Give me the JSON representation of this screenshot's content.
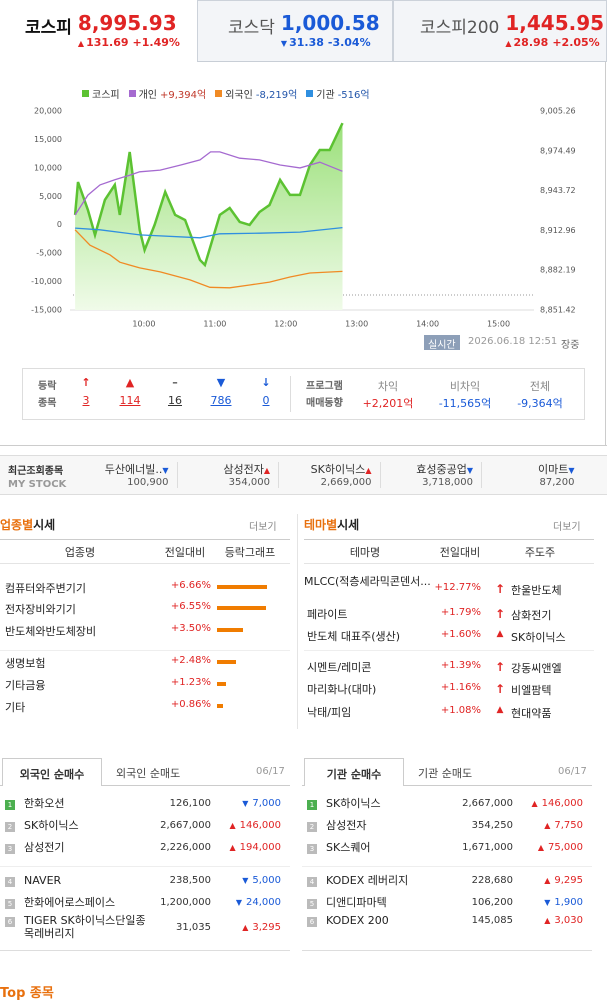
{
  "indices": [
    {
      "name": "코스피",
      "value": "8,995.93",
      "arrow": "▲",
      "change": "131.69",
      "rate": "+1.49%"
    },
    {
      "name": "코스닥",
      "value": "1,000.58",
      "arrow": "▼",
      "change": "31.38",
      "rate": "-3.04%"
    },
    {
      "name": "코스피200",
      "value": "1,445.95",
      "arrow": "▲",
      "change": "28.98",
      "rate": "+2.05%"
    }
  ],
  "chart_data": {
    "type": "line",
    "series": [
      {
        "name": "코스피",
        "color": "#5cc232",
        "axis": "y2",
        "fill": true,
        "x": [
          9.03,
          9.07,
          9.21,
          9.31,
          9.45,
          9.59,
          9.66,
          9.8,
          9.94,
          10.01,
          10.15,
          10.3,
          10.44,
          10.58,
          10.79,
          10.86,
          11.07,
          11.21,
          11.35,
          11.49,
          11.63,
          11.77,
          11.92,
          12.06,
          12.2,
          12.34,
          12.48,
          12.62,
          12.8
        ],
        "values": [
          8924.9,
          8950.4,
          8928.8,
          8909.4,
          8936.5,
          8948.1,
          8924.9,
          8973.6,
          8913.3,
          8897.8,
          8917.2,
          8942.7,
          8924.9,
          8921.0,
          8890.1,
          8886.2,
          8924.9,
          8930.3,
          8919.5,
          8917.2,
          8927.2,
          8932.6,
          8952.0,
          8940.4,
          8940.4,
          8963.5,
          8975.1,
          8975.1,
          8995.9
        ]
      },
      {
        "name": "개인",
        "legend_value": "+9,394억",
        "color": "#a56ad0",
        "x": [
          9.03,
          9.21,
          9.38,
          9.59,
          9.8,
          9.94,
          10.23,
          10.52,
          10.79,
          10.94,
          11.07,
          11.35,
          11.63,
          11.92,
          12.2,
          12.48,
          12.8
        ],
        "values": [
          1700,
          5200,
          7000,
          7900,
          8700,
          9300,
          9600,
          10500,
          11400,
          12800,
          12800,
          11700,
          11400,
          10500,
          10000,
          11000,
          9400
        ]
      },
      {
        "name": "외국인",
        "legend_value": "-8,219억",
        "color": "#f08a24",
        "x": [
          9.03,
          9.24,
          9.52,
          9.66,
          9.94,
          10.23,
          10.65,
          10.93,
          11.21,
          11.49,
          11.77,
          12.06,
          12.34,
          12.8
        ],
        "values": [
          -900,
          -3600,
          -5300,
          -6600,
          -7600,
          -8300,
          -9700,
          -11000,
          -11100,
          -10600,
          -10100,
          -9200,
          -8500,
          -8219
        ]
      },
      {
        "name": "기관",
        "legend_value": "-516억",
        "color": "#2f8fe0",
        "x": [
          9.03,
          9.38,
          9.94,
          10.79,
          11.07,
          11.63,
          12.2,
          12.8
        ],
        "values": [
          -600,
          -900,
          -1800,
          -2300,
          -1600,
          -1500,
          -1300,
          -516
        ]
      }
    ],
    "xlim": [
      9,
      15.5
    ],
    "xticks": [
      {
        "value": 10,
        "label": "10:00"
      },
      {
        "value": 11,
        "label": "11:00"
      },
      {
        "value": 12,
        "label": "12:00"
      },
      {
        "value": 13,
        "label": "13:00"
      },
      {
        "value": 14,
        "label": "14:00"
      },
      {
        "value": 15,
        "label": "15:00"
      }
    ],
    "ylim": [
      -15000,
      20000
    ],
    "yticks": [
      {
        "value": 20000,
        "label": "20,000"
      },
      {
        "value": 15000,
        "label": "15,000"
      },
      {
        "value": 10000,
        "label": "10,000"
      },
      {
        "value": 5000,
        "label": "5,000"
      },
      0,
      {
        "value": -5000,
        "label": "-5,000"
      },
      {
        "value": -10000,
        "label": "-10,000"
      },
      {
        "value": -15000,
        "label": "-15,000"
      }
    ],
    "y2lim": [
      8851.42,
      9005.26
    ],
    "y2ticks": [
      {
        "value": 9005.26,
        "label": "9,005.26"
      },
      {
        "value": 8974.49,
        "label": "8,974.49"
      },
      {
        "value": 8943.72,
        "label": "8,943.72"
      },
      {
        "value": 8912.96,
        "label": "8,912.96"
      },
      {
        "value": 8882.19,
        "label": "8,882.19"
      },
      {
        "value": 8851.42,
        "label": "8,851.42"
      }
    ]
  },
  "chart_footer": {
    "button": "실시간",
    "timestamp": "2026.06.18 12:51",
    "status": "장중"
  },
  "breadth": {
    "label": [
      "등락",
      "종목"
    ],
    "items": [
      {
        "arrow": "↑",
        "count": 3
      },
      {
        "arrow": "▲",
        "count": 114
      },
      {
        "arrow": "–",
        "count": 16
      },
      {
        "arrow": "▼",
        "count": 786
      },
      {
        "arrow": "↓",
        "count": 0
      }
    ]
  },
  "program": {
    "label": [
      "프로그램",
      "매매동향"
    ],
    "items": [
      {
        "name": "차익",
        "value": "+2,201억"
      },
      {
        "name": "비차익",
        "value": "-11,565억"
      },
      {
        "name": "전체",
        "value": "-9,364억"
      }
    ]
  },
  "my_stock": {
    "label": "최근조회종목",
    "sublabel": "MY STOCK",
    "items": [
      {
        "name": "두산에너빌..",
        "arrow": "▼",
        "price": "100,900"
      },
      {
        "name": "삼성전자",
        "arrow": "▲",
        "price": "354,000"
      },
      {
        "name": "SK하이닉스",
        "arrow": "▲",
        "price": "2,669,000"
      },
      {
        "name": "효성중공업",
        "arrow": "▼",
        "price": "3,718,000"
      },
      {
        "name": "이마트",
        "arrow": "▼",
        "price": "87,200"
      }
    ]
  },
  "sectors": {
    "title_highlight": "업종별",
    "title": "시세",
    "more": "더보기",
    "headers": [
      "업종명",
      "전일대비",
      "등락그래프"
    ],
    "rows": [
      {
        "name": "컴퓨터와주변기기",
        "change": 6.66,
        "change_label": "+6.66%"
      },
      {
        "name": "전자장비와기기",
        "change": 6.55,
        "change_label": "+6.55%"
      },
      {
        "name": "반도체와반도체장비",
        "change": 3.5,
        "change_label": "+3.50%"
      },
      {
        "name": "생명보험",
        "change": 2.48,
        "change_label": "+2.48%"
      },
      {
        "name": "기타금융",
        "change": 1.23,
        "change_label": "+1.23%"
      },
      {
        "name": "기타",
        "change": 0.86,
        "change_label": "+0.86%"
      }
    ]
  },
  "themes": {
    "title_highlight": "테마별",
    "title": "시세",
    "more": "더보기",
    "headers": [
      "테마명",
      "전일대비",
      "주도주"
    ],
    "rows": [
      {
        "name": "MLCC(적층세라믹콘덴서...",
        "change": "+12.77%",
        "arrow": "↑",
        "leader": "한울반도체"
      },
      {
        "name": "페라이트",
        "change": "+1.79%",
        "arrow": "↑",
        "leader": "삼화전기"
      },
      {
        "name": "반도체 대표주(생산)",
        "change": "+1.60%",
        "arrow": "▲",
        "leader": "SK하이닉스"
      },
      {
        "name": "시멘트/레미콘",
        "change": "+1.39%",
        "arrow": "↑",
        "leader": "강동씨앤엘"
      },
      {
        "name": "마리화나(대마)",
        "change": "+1.16%",
        "arrow": "↑",
        "leader": "비엘팜텍"
      },
      {
        "name": "낙태/피임",
        "change": "+1.08%",
        "arrow": "▲",
        "leader": "현대약품"
      }
    ]
  },
  "foreign": {
    "tabs": [
      "외국인 순매수",
      "외국인 순매도"
    ],
    "date": "06/17",
    "rows": [
      {
        "rank": 1,
        "name": "한화오션",
        "price": "126,100",
        "arrow": "▼",
        "change": "7,000"
      },
      {
        "rank": 2,
        "name": "SK하이닉스",
        "price": "2,667,000",
        "arrow": "▲",
        "change": "146,000"
      },
      {
        "rank": 3,
        "name": "삼성전기",
        "price": "2,226,000",
        "arrow": "▲",
        "change": "194,000"
      },
      {
        "rank": 4,
        "name": "NAVER",
        "price": "238,500",
        "arrow": "▼",
        "change": "5,000"
      },
      {
        "rank": 5,
        "name": "한화에어로스페이스",
        "price": "1,200,000",
        "arrow": "▼",
        "change": "24,000"
      },
      {
        "rank": 6,
        "name": "TIGER SK하이닉스단일종목레버리지",
        "price": "31,035",
        "arrow": "▲",
        "change": "3,295"
      }
    ]
  },
  "institution": {
    "tabs": [
      "기관 순매수",
      "기관 순매도"
    ],
    "date": "06/17",
    "rows": [
      {
        "rank": 1,
        "name": "SK하이닉스",
        "price": "2,667,000",
        "arrow": "▲",
        "change": "146,000"
      },
      {
        "rank": 2,
        "name": "삼성전자",
        "price": "354,250",
        "arrow": "▲",
        "change": "7,750"
      },
      {
        "rank": 3,
        "name": "SK스퀘어",
        "price": "1,671,000",
        "arrow": "▲",
        "change": "75,000"
      },
      {
        "rank": 4,
        "name": "KODEX 레버리지",
        "price": "228,680",
        "arrow": "▲",
        "change": "9,295"
      },
      {
        "rank": 5,
        "name": "디앤디파마텍",
        "price": "106,200",
        "arrow": "▼",
        "change": "1,900"
      },
      {
        "rank": 6,
        "name": "KODEX 200",
        "price": "145,085",
        "arrow": "▲",
        "change": "3,030"
      }
    ]
  },
  "footer_peek": "Top 종목"
}
